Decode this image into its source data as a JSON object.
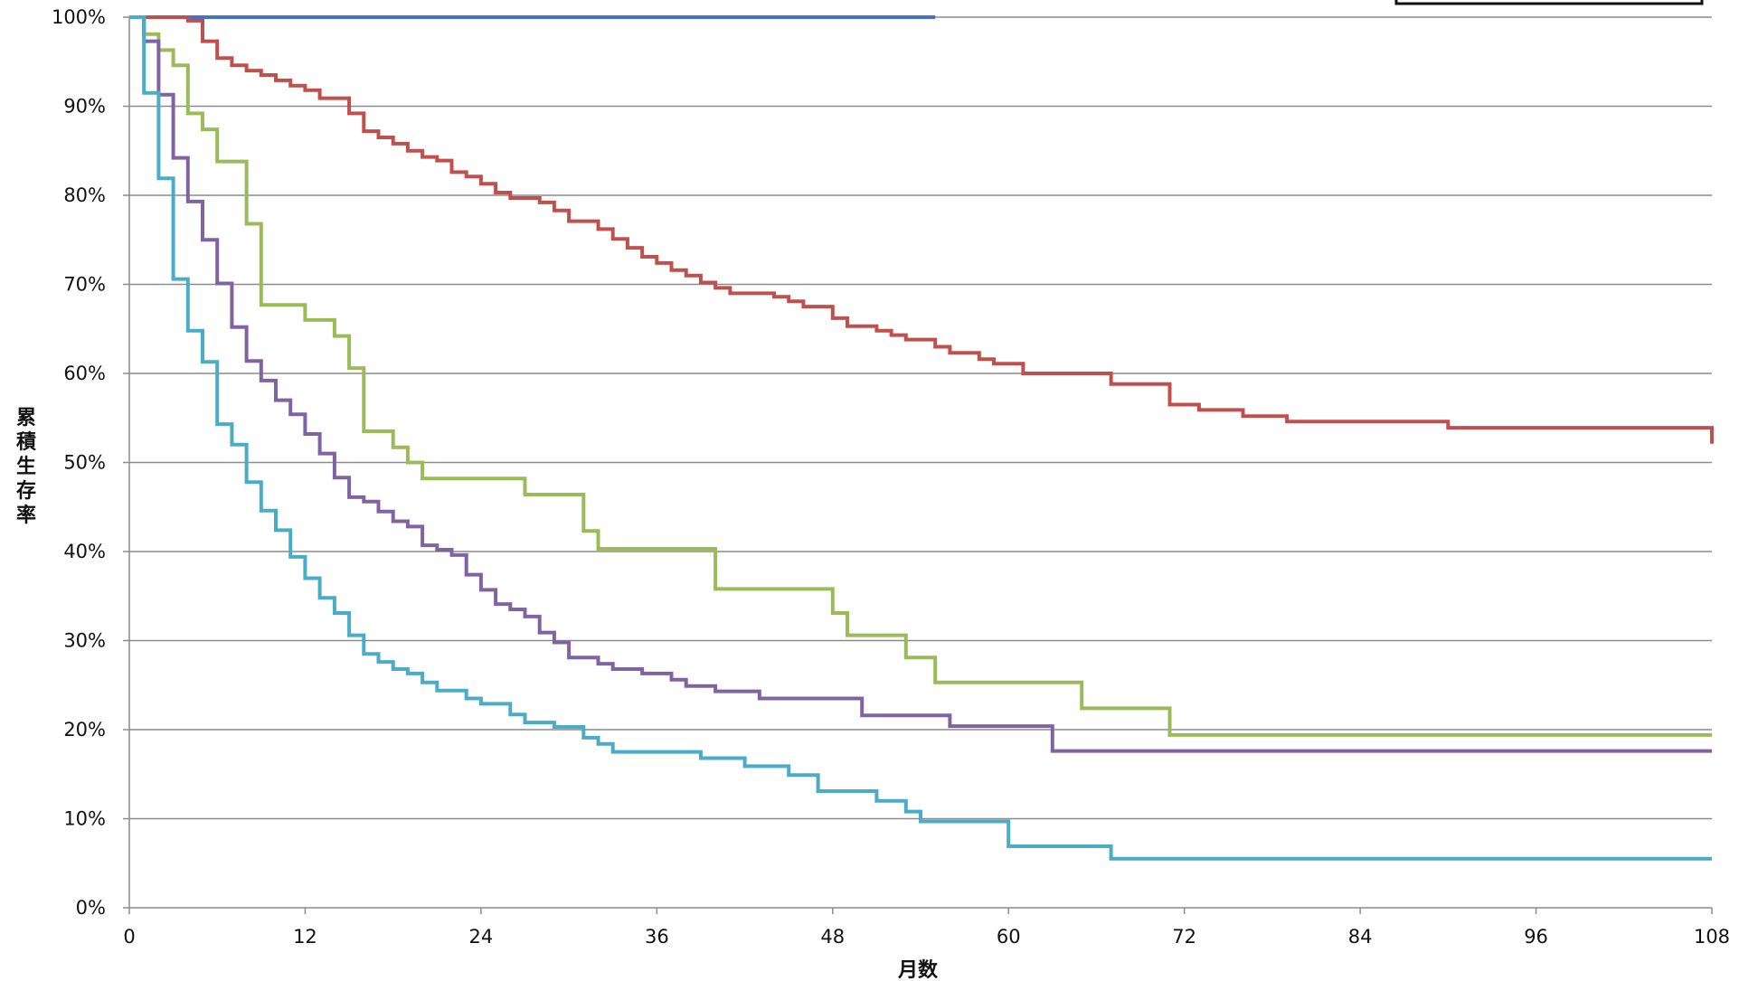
{
  "chart_data": {
    "type": "line",
    "step": true,
    "xlabel": "月数",
    "ylabel": "累積生存率",
    "xlim": [
      0,
      108
    ],
    "ylim": [
      0,
      100
    ],
    "x_ticks": [
      "0",
      "12",
      "24",
      "36",
      "48",
      "60",
      "72",
      "84",
      "96",
      "108"
    ],
    "y_ticks": [
      "0%",
      "10%",
      "20%",
      "30%",
      "40%",
      "50%",
      "60%",
      "70%",
      "80%",
      "90%",
      "100%"
    ],
    "grid": "horizontal",
    "legend": "top-right",
    "series": [
      {
        "color": "#4472C4",
        "points": [
          [
            0,
            100
          ],
          [
            55,
            100
          ]
        ]
      },
      {
        "color": "#C0504D",
        "points": [
          [
            0,
            100
          ],
          [
            4,
            99.6
          ],
          [
            5,
            97.3
          ],
          [
            6,
            95.4
          ],
          [
            7,
            94.6
          ],
          [
            8,
            94.0
          ],
          [
            9,
            93.5
          ],
          [
            10,
            92.9
          ],
          [
            11,
            92.3
          ],
          [
            12,
            91.8
          ],
          [
            13,
            90.9
          ],
          [
            15,
            89.2
          ],
          [
            16,
            87.2
          ],
          [
            17,
            86.5
          ],
          [
            18,
            85.8
          ],
          [
            19,
            85.0
          ],
          [
            20,
            84.3
          ],
          [
            21,
            83.9
          ],
          [
            22,
            82.6
          ],
          [
            23,
            82.1
          ],
          [
            24,
            81.3
          ],
          [
            25,
            80.3
          ],
          [
            26,
            79.7
          ],
          [
            28,
            79.2
          ],
          [
            29,
            78.3
          ],
          [
            30,
            77.1
          ],
          [
            32,
            76.2
          ],
          [
            33,
            75.1
          ],
          [
            34,
            74.1
          ],
          [
            35,
            73.1
          ],
          [
            36,
            72.4
          ],
          [
            37,
            71.6
          ],
          [
            38,
            71.0
          ],
          [
            39,
            70.2
          ],
          [
            40,
            69.6
          ],
          [
            41,
            69.0
          ],
          [
            44,
            68.6
          ],
          [
            45,
            68.1
          ],
          [
            46,
            67.5
          ],
          [
            48,
            66.2
          ],
          [
            49,
            65.3
          ],
          [
            51,
            64.8
          ],
          [
            52,
            64.3
          ],
          [
            53,
            63.8
          ],
          [
            55,
            63.0
          ],
          [
            56,
            62.3
          ],
          [
            58,
            61.6
          ],
          [
            59,
            61.1
          ],
          [
            61,
            60.0
          ],
          [
            67,
            58.8
          ],
          [
            71,
            56.5
          ],
          [
            73,
            55.9
          ],
          [
            76,
            55.2
          ],
          [
            79,
            54.6
          ],
          [
            90,
            53.9
          ],
          [
            108,
            53.6
          ],
          [
            108,
            52.1
          ]
        ]
      },
      {
        "color": "#9BBB59",
        "points": [
          [
            0,
            100
          ],
          [
            1,
            98.1
          ],
          [
            2,
            96.3
          ],
          [
            3,
            94.6
          ],
          [
            4,
            89.2
          ],
          [
            5,
            87.4
          ],
          [
            6,
            83.8
          ],
          [
            8,
            76.8
          ],
          [
            9,
            67.7
          ],
          [
            12,
            66.0
          ],
          [
            14,
            64.2
          ],
          [
            15,
            60.6
          ],
          [
            16,
            53.5
          ],
          [
            18,
            51.7
          ],
          [
            19,
            50.0
          ],
          [
            20,
            48.2
          ],
          [
            27,
            46.4
          ],
          [
            31,
            42.3
          ],
          [
            32,
            40.3
          ],
          [
            40,
            35.8
          ],
          [
            48,
            33.1
          ],
          [
            49,
            30.6
          ],
          [
            53,
            28.1
          ],
          [
            55,
            25.3
          ],
          [
            65,
            22.4
          ],
          [
            71,
            19.4
          ],
          [
            108,
            19.4
          ]
        ]
      },
      {
        "color": "#8064A2",
        "points": [
          [
            0,
            100
          ],
          [
            1,
            97.3
          ],
          [
            2,
            91.3
          ],
          [
            3,
            84.2
          ],
          [
            4,
            79.3
          ],
          [
            5,
            75.0
          ],
          [
            6,
            70.1
          ],
          [
            7,
            65.2
          ],
          [
            8,
            61.4
          ],
          [
            9,
            59.2
          ],
          [
            10,
            57.0
          ],
          [
            11,
            55.4
          ],
          [
            12,
            53.2
          ],
          [
            13,
            51.0
          ],
          [
            14,
            48.3
          ],
          [
            15,
            46.1
          ],
          [
            16,
            45.6
          ],
          [
            17,
            44.5
          ],
          [
            18,
            43.4
          ],
          [
            19,
            42.8
          ],
          [
            20,
            40.7
          ],
          [
            21,
            40.2
          ],
          [
            22,
            39.6
          ],
          [
            23,
            37.4
          ],
          [
            24,
            35.7
          ],
          [
            25,
            34.1
          ],
          [
            26,
            33.5
          ],
          [
            27,
            32.7
          ],
          [
            28,
            30.9
          ],
          [
            29,
            29.8
          ],
          [
            30,
            28.1
          ],
          [
            32,
            27.4
          ],
          [
            33,
            26.8
          ],
          [
            35,
            26.3
          ],
          [
            37,
            25.6
          ],
          [
            38,
            24.9
          ],
          [
            40,
            24.3
          ],
          [
            43,
            23.5
          ],
          [
            50,
            21.6
          ],
          [
            56,
            20.4
          ],
          [
            63,
            19.0
          ],
          [
            63,
            17.6
          ],
          [
            108,
            17.6
          ]
        ]
      },
      {
        "color": "#4BACC6",
        "points": [
          [
            0,
            100
          ],
          [
            1,
            91.5
          ],
          [
            2,
            81.9
          ],
          [
            3,
            70.6
          ],
          [
            4,
            64.8
          ],
          [
            5,
            61.3
          ],
          [
            6,
            54.3
          ],
          [
            7,
            52.0
          ],
          [
            8,
            47.8
          ],
          [
            9,
            44.6
          ],
          [
            10,
            42.4
          ],
          [
            11,
            39.4
          ],
          [
            12,
            37.0
          ],
          [
            13,
            34.8
          ],
          [
            14,
            33.1
          ],
          [
            15,
            30.6
          ],
          [
            16,
            28.5
          ],
          [
            17,
            27.6
          ],
          [
            18,
            26.8
          ],
          [
            19,
            26.3
          ],
          [
            20,
            25.3
          ],
          [
            21,
            24.4
          ],
          [
            23,
            23.5
          ],
          [
            24,
            22.9
          ],
          [
            26,
            21.7
          ],
          [
            27,
            20.8
          ],
          [
            29,
            20.3
          ],
          [
            31,
            19.1
          ],
          [
            32,
            18.4
          ],
          [
            33,
            17.5
          ],
          [
            39,
            16.8
          ],
          [
            42,
            15.9
          ],
          [
            45,
            14.9
          ],
          [
            47,
            13.1
          ],
          [
            51,
            12.0
          ],
          [
            53,
            10.8
          ],
          [
            54,
            9.7
          ],
          [
            60,
            6.9
          ],
          [
            67,
            5.5
          ],
          [
            108,
            5.5
          ]
        ]
      }
    ]
  }
}
